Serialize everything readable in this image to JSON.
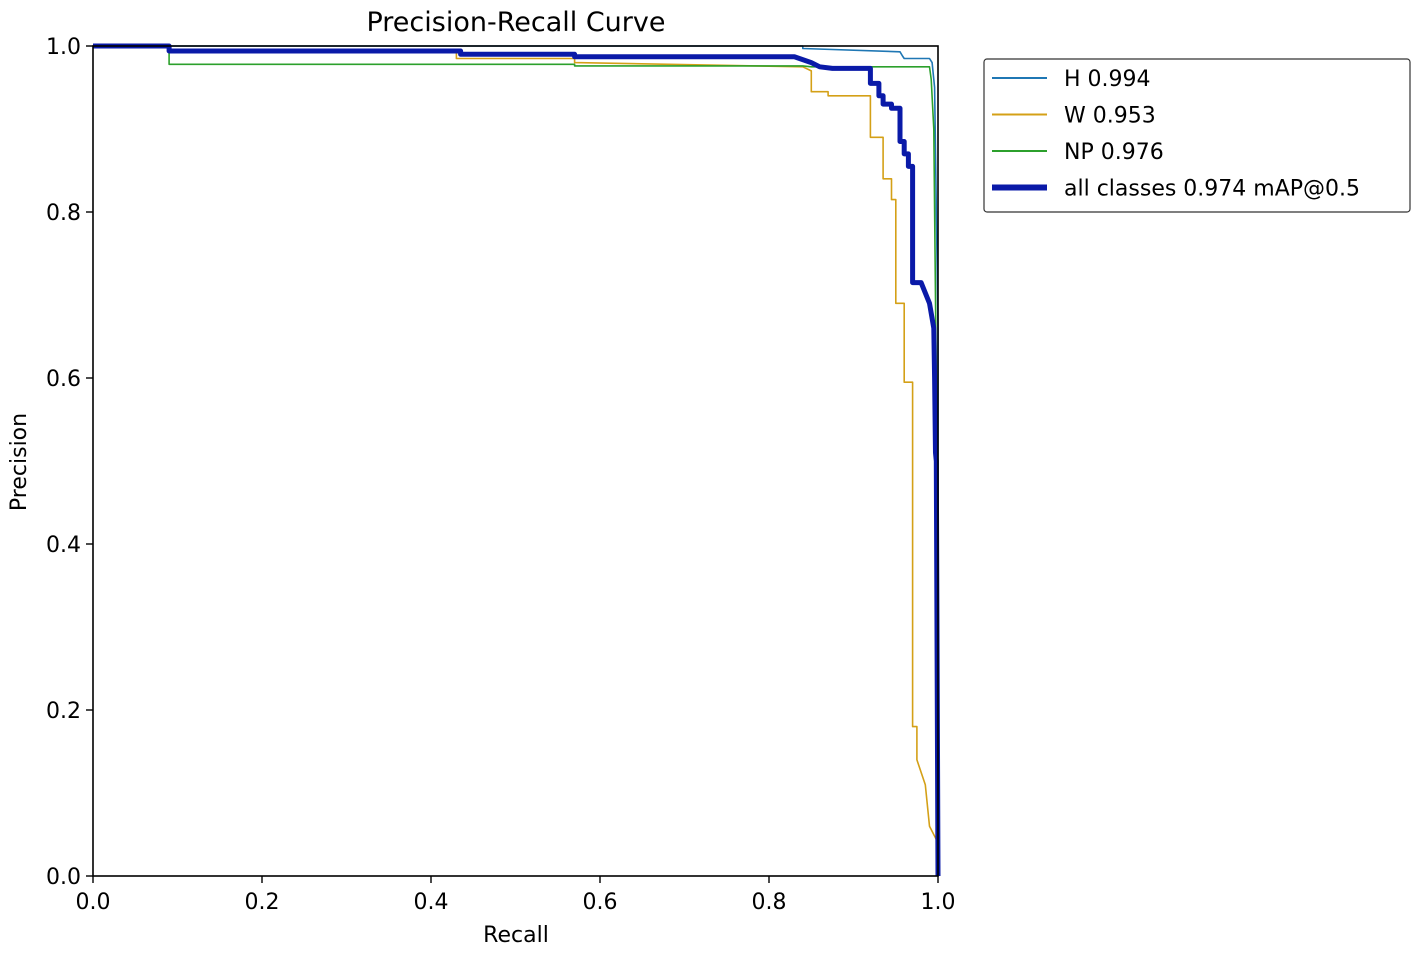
{
  "chart_data": {
    "type": "line",
    "title": "Precision-Recall Curve",
    "xlabel": "Recall",
    "ylabel": "Precision",
    "xlim": [
      0,
      1
    ],
    "ylim": [
      0,
      1
    ],
    "xticks": [
      "0.0",
      "0.2",
      "0.4",
      "0.6",
      "0.8",
      "1.0"
    ],
    "yticks": [
      "0.0",
      "0.2",
      "0.4",
      "0.6",
      "0.8",
      "1.0"
    ],
    "grid": false,
    "legend_position": "outside-upper-right",
    "series": [
      {
        "name": "H 0.994",
        "color": "#1f77b4",
        "width": "thin",
        "x": [
          0,
          0.84,
          0.84,
          0.955,
          0.958,
          0.96,
          0.99,
          0.993,
          0.996,
          1.0,
          1.0
        ],
        "y": [
          1.0,
          1.0,
          0.997,
          0.993,
          0.988,
          0.985,
          0.985,
          0.98,
          0.95,
          0.66,
          0.0
        ]
      },
      {
        "name": "W 0.953",
        "color": "#d4a017",
        "width": "thin",
        "x": [
          0,
          0.09,
          0.09,
          0.43,
          0.43,
          0.57,
          0.57,
          0.84,
          0.85,
          0.85,
          0.87,
          0.87,
          0.92,
          0.92,
          0.935,
          0.935,
          0.945,
          0.945,
          0.95,
          0.95,
          0.96,
          0.96,
          0.97,
          0.97,
          0.975,
          0.975,
          0.985,
          0.99,
          1.0,
          1.0
        ],
        "y": [
          1.0,
          1.0,
          0.994,
          0.994,
          0.985,
          0.985,
          0.98,
          0.975,
          0.97,
          0.945,
          0.945,
          0.94,
          0.94,
          0.89,
          0.89,
          0.84,
          0.84,
          0.815,
          0.815,
          0.69,
          0.69,
          0.595,
          0.595,
          0.18,
          0.18,
          0.14,
          0.11,
          0.06,
          0.04,
          0.0
        ]
      },
      {
        "name": "NP 0.976",
        "color": "#2ca02c",
        "width": "thin",
        "x": [
          0,
          0.09,
          0.09,
          0.57,
          0.57,
          0.84,
          0.85,
          0.99,
          0.992,
          0.995,
          0.998,
          1.0
        ],
        "y": [
          1.0,
          1.0,
          0.978,
          0.978,
          0.976,
          0.976,
          0.975,
          0.975,
          0.96,
          0.9,
          0.6,
          0.0
        ]
      },
      {
        "name": "all classes 0.974 mAP@0.5",
        "color": "#0a1aa8",
        "width": "thick",
        "x": [
          0,
          0.09,
          0.09,
          0.435,
          0.435,
          0.57,
          0.57,
          0.83,
          0.85,
          0.86,
          0.875,
          0.92,
          0.92,
          0.93,
          0.93,
          0.935,
          0.935,
          0.945,
          0.945,
          0.955,
          0.955,
          0.96,
          0.96,
          0.965,
          0.965,
          0.97,
          0.97,
          0.98,
          0.99,
          0.995,
          0.996,
          0.997,
          0.998,
          1.0
        ],
        "y": [
          1.0,
          1.0,
          0.994,
          0.994,
          0.99,
          0.99,
          0.987,
          0.987,
          0.98,
          0.975,
          0.973,
          0.973,
          0.955,
          0.955,
          0.94,
          0.94,
          0.93,
          0.93,
          0.925,
          0.925,
          0.885,
          0.885,
          0.87,
          0.87,
          0.855,
          0.855,
          0.715,
          0.715,
          0.69,
          0.66,
          0.6,
          0.51,
          0.5,
          0.0
        ]
      }
    ]
  }
}
